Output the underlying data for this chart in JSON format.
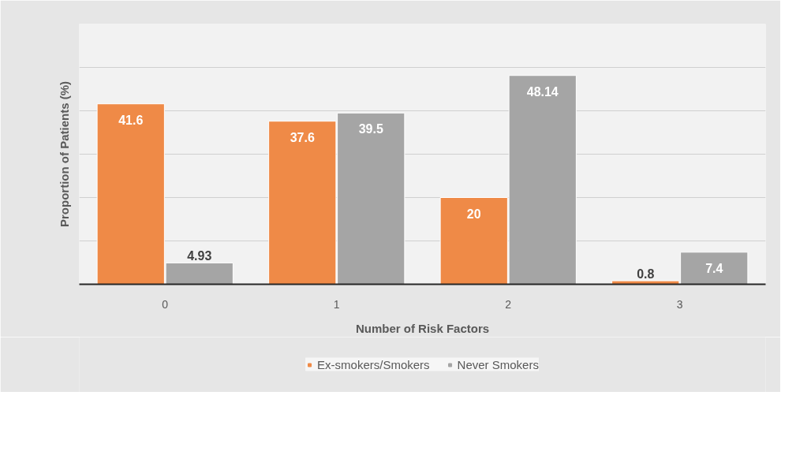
{
  "chart_data": {
    "type": "bar",
    "xlabel": "Number of Risk Factors",
    "ylabel": "Proportion of Patients (%)",
    "categories": [
      "0",
      "1",
      "2",
      "3"
    ],
    "series": [
      {
        "name": "Ex-smokers/Smokers",
        "color": "#ef8a47",
        "values": [
          41.6,
          37.6,
          20,
          0.8
        ]
      },
      {
        "name": "Never Smokers",
        "color": "#a5a5a5",
        "values": [
          4.93,
          39.5,
          48.14,
          7.4
        ]
      }
    ],
    "ylim": [
      0,
      60
    ],
    "yticks": [
      {
        "value": 0,
        "label": null
      },
      {
        "value": 10,
        "label": null
      },
      {
        "value": 20,
        "label": null
      },
      {
        "value": 30,
        "label": null
      },
      {
        "value": 40,
        "label": null
      },
      {
        "value": 50,
        "label": null
      },
      {
        "value": 60,
        "label": null
      }
    ],
    "tick_labels": "x",
    "grid": "y",
    "legend": "bottom",
    "data_labels": true
  }
}
